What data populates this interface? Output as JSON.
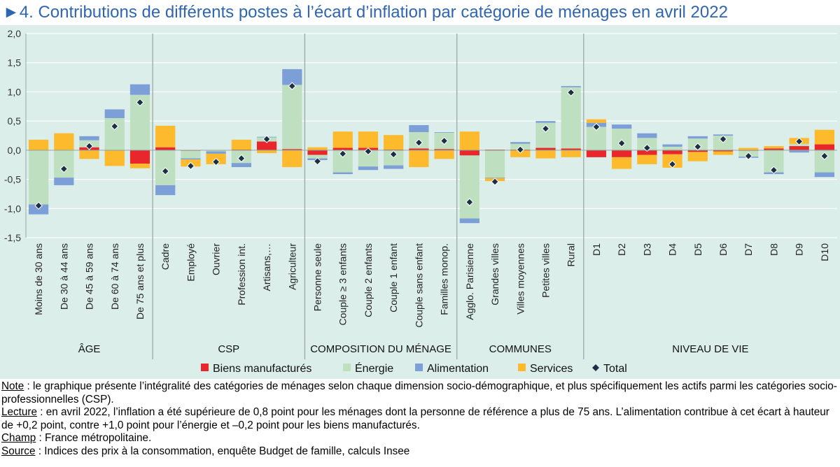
{
  "title": "►4. Contributions de différents postes à l’écart d’inflation par catégorie de ménages en avril 2022",
  "colors": {
    "biens": "#e8262b",
    "energie": "#bfe0c0",
    "alimentation": "#7d9fd8",
    "services": "#fcba2c",
    "total": "#1c3045",
    "background": "#dceee9"
  },
  "chart_data": {
    "type": "bar",
    "stacked": true,
    "ylim": [
      -1.5,
      2.0
    ],
    "yticks": [
      "2,0",
      "1,5",
      "1,0",
      "0,5",
      "0,0",
      "-0,5",
      "-1,0",
      "-1,5"
    ],
    "grid": true,
    "legend_position": "bottom",
    "legend": [
      "Biens manufacturés",
      "Énergie",
      "Alimentation",
      "Services",
      "Total"
    ],
    "groups": [
      {
        "name": "ÂGE",
        "categories": [
          "Moins de 30 ans",
          "De 30 à 44 ans",
          "De 45 à 59 ans",
          "De 60 à 74 ans",
          "De 75 ans et plus"
        ]
      },
      {
        "name": "CSP",
        "categories": [
          "Cadre",
          "Employé",
          "Ouvrier",
          "Profession int.",
          "Artisans,…",
          "Agriculteur"
        ]
      },
      {
        "name": "COMPOSITION DU MÉNAGE",
        "categories": [
          "Personne seule",
          "Couple ≥ 3 enfants",
          "Couple  2 enfants",
          "Couple 1 enfant",
          "Couple sans enfant",
          "Familles monop."
        ]
      },
      {
        "name": "COMMUNES",
        "categories": [
          "Agglo. Parisienne",
          "Grandes villes",
          "Villes moyennes",
          "Petites villes",
          "Rural"
        ]
      },
      {
        "name": "NIVEAU DE VIE",
        "categories": [
          "D1",
          "D2",
          "D3",
          "D4",
          "D5",
          "D6",
          "D7",
          "D8",
          "D9",
          "D10"
        ]
      }
    ],
    "series": [
      {
        "name": "Biens manufacturés",
        "values": [
          0,
          0,
          0.05,
          0,
          -0.23,
          0.05,
          -0.01,
          0,
          0.01,
          0.15,
          0.02,
          -0.08,
          0.04,
          0.04,
          0.01,
          0.03,
          0.02,
          -0.09,
          0.01,
          0.01,
          0.04,
          0.03,
          -0.12,
          -0.12,
          -0.08,
          -0.07,
          -0.03,
          -0.02,
          -0.01,
          0.03,
          0.07,
          0.1
        ]
      },
      {
        "name": "Énergie",
        "values": [
          -0.93,
          -0.47,
          0.12,
          0.55,
          0.95,
          -0.6,
          -0.13,
          -0.02,
          -0.22,
          0.07,
          1.1,
          -0.06,
          -0.38,
          -0.28,
          -0.26,
          0.28,
          0.28,
          -1.08,
          -0.47,
          0.1,
          0.43,
          1.05,
          0.4,
          0.37,
          0.21,
          0.06,
          0.2,
          0.25,
          -0.1,
          -0.38,
          0.04,
          -0.38
        ]
      },
      {
        "name": "Alimentation",
        "values": [
          -0.17,
          -0.13,
          0.07,
          0.15,
          0.18,
          -0.17,
          -0.02,
          -0.04,
          -0.07,
          0.01,
          0.27,
          -0.03,
          -0.03,
          -0.06,
          -0.06,
          0.12,
          0.01,
          -0.08,
          -0.01,
          0.03,
          0.03,
          0.02,
          0.07,
          0.07,
          0.08,
          0.04,
          0.04,
          0.02,
          -0.02,
          -0.03,
          -0.04,
          -0.08
        ]
      },
      {
        "name": "Services",
        "values": [
          0.18,
          0.29,
          -0.15,
          -0.27,
          -0.08,
          0.37,
          -0.12,
          -0.18,
          0.17,
          -0.05,
          -0.29,
          0.05,
          0.28,
          0.28,
          0.25,
          -0.29,
          -0.15,
          0.32,
          -0.05,
          -0.12,
          -0.14,
          -0.12,
          0.06,
          -0.2,
          -0.16,
          -0.23,
          -0.16,
          -0.06,
          0.04,
          0.04,
          0.1,
          0.25
        ]
      },
      {
        "name": "Total",
        "values": [
          -0.95,
          -0.32,
          0.07,
          0.41,
          0.82,
          -0.36,
          -0.27,
          -0.2,
          -0.14,
          0.19,
          1.1,
          -0.19,
          -0.06,
          -0.02,
          -0.07,
          0.13,
          0.16,
          -0.89,
          -0.54,
          0.01,
          0.37,
          0.99,
          0.4,
          0.12,
          0.04,
          -0.24,
          0.06,
          0.19,
          -0.1,
          -0.34,
          0.15,
          -0.1
        ]
      }
    ]
  },
  "notes": [
    {
      "label": "Note",
      "text": " : le graphique présente l’intégralité des catégories de ménages selon chaque dimension socio-démographique, et plus spécifiquement les actifs parmi les catégories socio-professionnelles (CSP)."
    },
    {
      "label": "Lecture",
      "text": " : en avril 2022, l’inflation a été supérieure de 0,8 point pour les ménages dont la personne de référence a plus de 75 ans. L’alimentation contribue à cet écart à hauteur de +0,2 point, contre +1,0 point pour l’énergie et –0,2 point pour les biens manufacturés."
    },
    {
      "label": "Champ",
      "text": " : France métropolitaine."
    },
    {
      "label": "Source",
      "text": " : Indices des prix à la consommation, enquête Budget de famille, calculs Insee"
    }
  ]
}
